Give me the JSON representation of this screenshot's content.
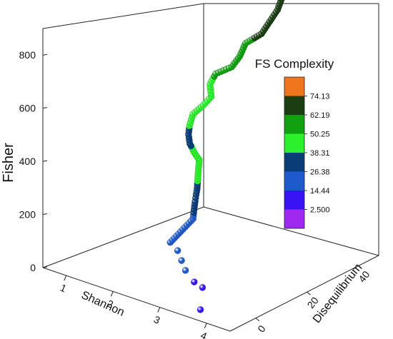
{
  "chart_data": {
    "type": "scatter",
    "projection": "3d",
    "xlabel": "Shannon",
    "ylabel": "Disequilibrium",
    "zlabel": "Fisher",
    "x_ticks": [
      "1",
      "2",
      "3",
      "4"
    ],
    "y_ticks": [
      "0",
      "20",
      "40"
    ],
    "z_ticks": [
      "0",
      "200",
      "400",
      "600",
      "800"
    ],
    "xlim": [
      0.5,
      4.6
    ],
    "ylim": [
      -10,
      48
    ],
    "zlim": [
      0,
      900
    ],
    "legend": {
      "title": "FS Complexity",
      "placement": "right",
      "labels": [
        "74.13",
        "62.19",
        "50.25",
        "38.31",
        "26.38",
        "14.44",
        "2.500"
      ],
      "colors": [
        "#f0761e",
        "#1b3d12",
        "#10a010",
        "#2bf02b",
        "#0a3c78",
        "#1e5acc",
        "#3814f5",
        "#a028f0"
      ]
    },
    "points": [
      {
        "x": 3.58,
        "y": -6,
        "z": 0,
        "c": 8
      },
      {
        "x": 3.05,
        "y": 2,
        "z": 0,
        "c": 9
      },
      {
        "x": 2.8,
        "y": 3,
        "z": 0,
        "c": 12
      },
      {
        "x": 2.4,
        "y": 6,
        "z": 0,
        "c": 16
      },
      {
        "x": 2.1,
        "y": 9,
        "z": 0,
        "c": 18
      },
      {
        "x": 1.8,
        "y": 12,
        "z": 0,
        "c": 20
      },
      {
        "x": 1.5,
        "y": 14,
        "z": 0,
        "c": 22
      },
      {
        "x": 1.7,
        "y": 18,
        "z": 75,
        "c": 25
      },
      {
        "x": 1.65,
        "y": 19,
        "z": 100,
        "c": 28
      },
      {
        "x": 1.6,
        "y": 20,
        "z": 122,
        "c": 31
      },
      {
        "x": 1.55,
        "y": 21,
        "z": 138,
        "c": 34
      },
      {
        "x": 1.5,
        "y": 22,
        "z": 150,
        "c": 37
      },
      {
        "x": 1.45,
        "y": 23,
        "z": 200,
        "c": 40
      },
      {
        "x": 1.4,
        "y": 24,
        "z": 240,
        "c": 43
      },
      {
        "x": 1.3,
        "y": 24,
        "z": 260,
        "c": 40
      },
      {
        "x": 1.2,
        "y": 24,
        "z": 290,
        "c": 37
      },
      {
        "x": 1.1,
        "y": 25,
        "z": 312,
        "c": 30
      },
      {
        "x": 1.05,
        "y": 26,
        "z": 335,
        "c": 40
      },
      {
        "x": 1.05,
        "y": 27,
        "z": 372,
        "c": 45
      },
      {
        "x": 1.2,
        "y": 28,
        "z": 408,
        "c": 48
      },
      {
        "x": 1.3,
        "y": 29,
        "z": 440,
        "c": 50
      },
      {
        "x": 1.2,
        "y": 30,
        "z": 475,
        "c": 48
      },
      {
        "x": 1.25,
        "y": 31,
        "z": 510,
        "c": 52
      },
      {
        "x": 1.45,
        "y": 33,
        "z": 535,
        "c": 56
      },
      {
        "x": 1.55,
        "y": 34,
        "z": 575,
        "c": 58
      },
      {
        "x": 1.6,
        "y": 35,
        "z": 620,
        "c": 60
      },
      {
        "x": 1.8,
        "y": 37,
        "z": 655,
        "c": 64
      },
      {
        "x": 1.9,
        "y": 38,
        "z": 700,
        "c": 68
      },
      {
        "x": 2.0,
        "y": 39,
        "z": 745,
        "c": 72
      },
      {
        "x": 2.05,
        "y": 40,
        "z": 800,
        "c": 75
      },
      {
        "x": 2.1,
        "y": 41,
        "z": 850,
        "c": 76
      },
      {
        "x": 2.1,
        "y": 42,
        "z": 895,
        "c": 77
      }
    ]
  }
}
